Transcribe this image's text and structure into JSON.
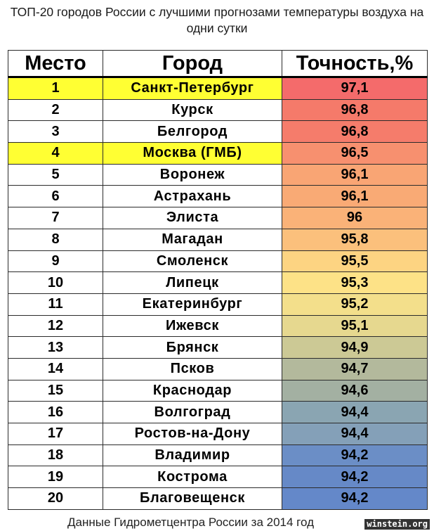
{
  "title": "ТОП-20 городов России с лучшими прогнозами температуры воздуха на одни сутки",
  "headers": {
    "place": "Место",
    "city": "Город",
    "accuracy": "Точность,%"
  },
  "highlight_color": "#ffff33",
  "rows": [
    {
      "place": "1",
      "city": "Санкт-Петербург",
      "accuracy": "97,1",
      "highlight": true,
      "color": "#f46b6b"
    },
    {
      "place": "2",
      "city": "Курск",
      "accuracy": "96,8",
      "highlight": false,
      "color": "#f57a6a"
    },
    {
      "place": "3",
      "city": "Белгород",
      "accuracy": "96,8",
      "highlight": false,
      "color": "#f57c6b"
    },
    {
      "place": "4",
      "city": "Москва (ГМБ)",
      "accuracy": "96,5",
      "highlight": true,
      "color": "#f7906f"
    },
    {
      "place": "5",
      "city": "Воронеж",
      "accuracy": "96,1",
      "highlight": false,
      "color": "#f9a574"
    },
    {
      "place": "6",
      "city": "Астрахань",
      "accuracy": "96,1",
      "highlight": false,
      "color": "#f9aa75"
    },
    {
      "place": "7",
      "city": "Элиста",
      "accuracy": "96",
      "highlight": false,
      "color": "#fab278"
    },
    {
      "place": "8",
      "city": "Магадан",
      "accuracy": "95,8",
      "highlight": false,
      "color": "#fbc07c"
    },
    {
      "place": "9",
      "city": "Смоленск",
      "accuracy": "95,5",
      "highlight": false,
      "color": "#fdd482"
    },
    {
      "place": "10",
      "city": "Липецк",
      "accuracy": "95,3",
      "highlight": false,
      "color": "#fde287"
    },
    {
      "place": "11",
      "city": "Екатеринбург",
      "accuracy": "95,2",
      "highlight": false,
      "color": "#f3df8b"
    },
    {
      "place": "12",
      "city": "Ижевск",
      "accuracy": "95,1",
      "highlight": false,
      "color": "#e6d88f"
    },
    {
      "place": "13",
      "city": "Брянск",
      "accuracy": "94,9",
      "highlight": false,
      "color": "#ccc995"
    },
    {
      "place": "14",
      "city": "Псков",
      "accuracy": "94,7",
      "highlight": false,
      "color": "#b3b99c"
    },
    {
      "place": "15",
      "city": "Краснодар",
      "accuracy": "94,6",
      "highlight": false,
      "color": "#a3b0a2"
    },
    {
      "place": "16",
      "city": "Волгоград",
      "accuracy": "94,4",
      "highlight": false,
      "color": "#8aa5b2"
    },
    {
      "place": "17",
      "city": "Ростов-на-Дону",
      "accuracy": "94,4",
      "highlight": false,
      "color": "#84a0b8"
    },
    {
      "place": "18",
      "city": "Владимир",
      "accuracy": "94,2",
      "highlight": false,
      "color": "#6b8ec6"
    },
    {
      "place": "19",
      "city": "Кострома",
      "accuracy": "94,2",
      "highlight": false,
      "color": "#6689c7"
    },
    {
      "place": "20",
      "city": "Благовещенск",
      "accuracy": "94,2",
      "highlight": false,
      "color": "#6488c9"
    }
  ],
  "footer": "Данные Гидрометцентра России за 2014 год",
  "watermark": "winstein.org"
}
